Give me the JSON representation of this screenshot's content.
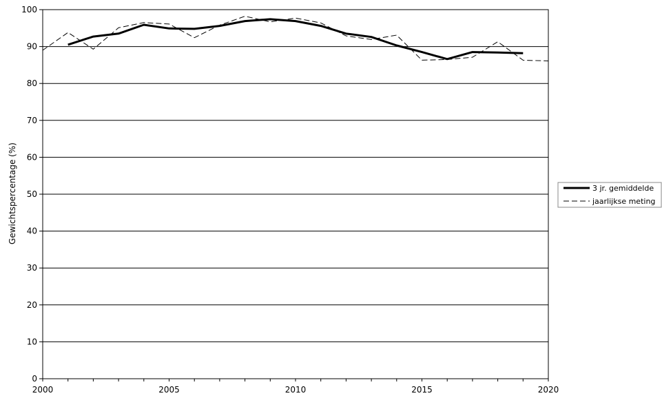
{
  "chart_data": {
    "type": "line",
    "ylabel": "Gewichtspercentage (%)",
    "xlabel": "",
    "xlim": [
      2000,
      2020
    ],
    "ylim": [
      0,
      100
    ],
    "x_ticks": [
      2000,
      2005,
      2010,
      2015,
      2020
    ],
    "y_ticks": [
      0,
      10,
      20,
      30,
      40,
      50,
      60,
      70,
      80,
      90,
      100
    ],
    "grid": "horizontal",
    "legend_position": "right",
    "series": [
      {
        "name": "3 jr. gemiddelde",
        "style": "solid",
        "color": "#000000",
        "x": [
          2001,
          2002,
          2003,
          2004,
          2005,
          2006,
          2007,
          2008,
          2009,
          2010,
          2011,
          2012,
          2013,
          2014,
          2015,
          2016,
          2017,
          2018,
          2019
        ],
        "values": [
          90.5,
          92.7,
          93.5,
          95.9,
          94.9,
          94.8,
          95.6,
          96.9,
          97.4,
          96.9,
          95.6,
          93.5,
          92.6,
          90.3,
          88.5,
          86.6,
          88.5,
          88.4,
          88.2
        ]
      },
      {
        "name": "jaarlijkse meting",
        "style": "dashed",
        "color": "#000000",
        "x": [
          2000,
          2001,
          2002,
          2003,
          2004,
          2005,
          2006,
          2007,
          2008,
          2009,
          2010,
          2011,
          2012,
          2013,
          2014,
          2015,
          2016,
          2017,
          2018,
          2019,
          2020
        ],
        "values": [
          89.0,
          93.8,
          89.3,
          95.1,
          96.5,
          96.1,
          92.4,
          95.8,
          98.2,
          96.7,
          97.7,
          96.4,
          92.9,
          91.9,
          93.1,
          86.3,
          86.5,
          87.1,
          91.3,
          86.3,
          86.1
        ]
      }
    ]
  }
}
